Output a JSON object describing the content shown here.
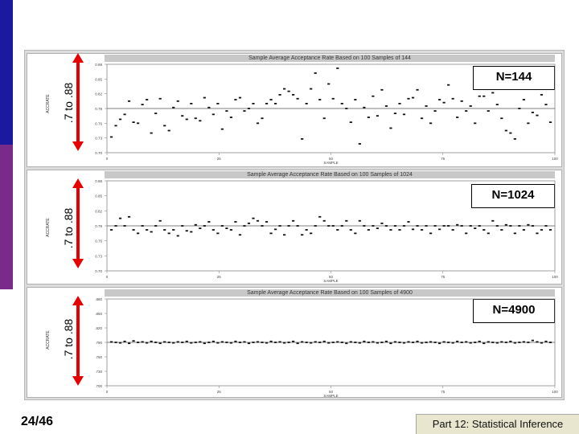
{
  "slide": {
    "number": "24/46",
    "footer": "Part 12: Statistical Inference",
    "accent_color": "#1a1aa0",
    "accent2_color": "#7a2a8a"
  },
  "chart_data": [
    {
      "type": "scatter",
      "title": "Sample Average Acceptance Rate Based on 100 Samples of 144",
      "n_label": "N=144",
      "range_label": ".7 to .88",
      "ylabel": "ACCRATE",
      "xlabel": "SAMPLE",
      "xlim": [
        0,
        100
      ],
      "ylim": [
        0.7,
        0.88
      ],
      "y_ticks": [
        "0.88",
        "0.85",
        "0.82",
        "0.79",
        "0.76",
        "0.73",
        "0.70"
      ],
      "x_ticks": [
        "0",
        "25",
        "50",
        "75",
        "100"
      ],
      "reference_line": 0.79,
      "y": [
        0.732,
        0.755,
        0.768,
        0.778,
        0.805,
        0.762,
        0.76,
        0.798,
        0.808,
        0.74,
        0.78,
        0.81,
        0.755,
        0.745,
        0.792,
        0.805,
        0.775,
        0.768,
        0.8,
        0.77,
        0.765,
        0.812,
        0.792,
        0.778,
        0.8,
        0.748,
        0.785,
        0.772,
        0.808,
        0.812,
        0.785,
        0.79,
        0.8,
        0.76,
        0.77,
        0.8,
        0.808,
        0.8,
        0.818,
        0.83,
        0.825,
        0.818,
        0.81,
        0.728,
        0.8,
        0.83,
        0.862,
        0.808,
        0.77,
        0.84,
        0.81,
        0.872,
        0.8,
        0.79,
        0.762,
        0.808,
        0.718,
        0.792,
        0.772,
        0.815,
        0.775,
        0.828,
        0.795,
        0.75,
        0.78,
        0.8,
        0.778,
        0.81,
        0.812,
        0.828,
        0.77,
        0.795,
        0.76,
        0.785,
        0.808,
        0.802,
        0.838,
        0.81,
        0.772,
        0.805,
        0.785,
        0.795,
        0.76,
        0.815,
        0.815,
        0.785,
        0.822,
        0.798,
        0.77,
        0.745,
        0.74,
        0.728,
        0.79,
        0.808,
        0.76,
        0.782,
        0.776,
        0.818,
        0.798,
        0.762
      ]
    },
    {
      "type": "scatter",
      "title": "Sample Average Acceptance Rate Based on 100 Samples of 1024",
      "n_label": "N=1024",
      "range_label": ".7 to .88",
      "ylabel": "ACCRATE",
      "xlabel": "SAMPLE",
      "xlim": [
        0,
        100
      ],
      "ylim": [
        0.7,
        0.88
      ],
      "y_ticks": [
        "0.88",
        "0.85",
        "0.82",
        "0.79",
        "0.76",
        "0.73",
        "0.70"
      ],
      "x_ticks": [
        "0",
        "25",
        "50",
        "75",
        "100"
      ],
      "reference_line": 0.79,
      "y": [
        0.782,
        0.79,
        0.805,
        0.79,
        0.808,
        0.782,
        0.775,
        0.79,
        0.782,
        0.778,
        0.79,
        0.8,
        0.782,
        0.775,
        0.782,
        0.77,
        0.79,
        0.78,
        0.778,
        0.792,
        0.785,
        0.79,
        0.798,
        0.782,
        0.775,
        0.79,
        0.785,
        0.782,
        0.798,
        0.772,
        0.79,
        0.795,
        0.805,
        0.8,
        0.79,
        0.798,
        0.775,
        0.783,
        0.79,
        0.772,
        0.79,
        0.8,
        0.79,
        0.772,
        0.782,
        0.775,
        0.79,
        0.808,
        0.8,
        0.79,
        0.79,
        0.782,
        0.79,
        0.8,
        0.782,
        0.775,
        0.8,
        0.79,
        0.782,
        0.79,
        0.785,
        0.795,
        0.79,
        0.782,
        0.79,
        0.782,
        0.79,
        0.798,
        0.783,
        0.79,
        0.782,
        0.79,
        0.775,
        0.79,
        0.783,
        0.79,
        0.79,
        0.782,
        0.792,
        0.79,
        0.775,
        0.79,
        0.785,
        0.79,
        0.782,
        0.775,
        0.8,
        0.79,
        0.782,
        0.792,
        0.79,
        0.775,
        0.79,
        0.782,
        0.792,
        0.79,
        0.775,
        0.782,
        0.79,
        0.782
      ]
    },
    {
      "type": "scatter",
      "title": "Sample Average Acceptance Rate Based on 100 Samples of 4900",
      "n_label": "N=4900",
      "range_label": ".7 to .88",
      "ylabel": "ACCRATE",
      "xlabel": "SAMPLE",
      "xlim": [
        0,
        100
      ],
      "ylim": [
        0.7,
        0.88
      ],
      "y_ticks": [
        ".880",
        ".850",
        ".820",
        ".790",
        ".760",
        ".730",
        ".700"
      ],
      "x_ticks": [
        "0",
        "25",
        "50",
        "75",
        "100"
      ],
      "reference_line": 0.79,
      "y": [
        0.791,
        0.79,
        0.789,
        0.792,
        0.788,
        0.793,
        0.79,
        0.791,
        0.789,
        0.792,
        0.79,
        0.788,
        0.791,
        0.79,
        0.789,
        0.791,
        0.79,
        0.792,
        0.789,
        0.79,
        0.791,
        0.788,
        0.79,
        0.792,
        0.789,
        0.791,
        0.79,
        0.789,
        0.792,
        0.79,
        0.791,
        0.788,
        0.79,
        0.791,
        0.79,
        0.789,
        0.792,
        0.79,
        0.791,
        0.789,
        0.79,
        0.792,
        0.788,
        0.791,
        0.79,
        0.789,
        0.791,
        0.79,
        0.792,
        0.789,
        0.79,
        0.791,
        0.79,
        0.788,
        0.791,
        0.79,
        0.789,
        0.792,
        0.79,
        0.791,
        0.789,
        0.79,
        0.792,
        0.788,
        0.791,
        0.79,
        0.789,
        0.791,
        0.79,
        0.792,
        0.789,
        0.79,
        0.791,
        0.79,
        0.788,
        0.791,
        0.79,
        0.789,
        0.792,
        0.79,
        0.791,
        0.789,
        0.79,
        0.792,
        0.788,
        0.791,
        0.79,
        0.789,
        0.791,
        0.79,
        0.792,
        0.789,
        0.79,
        0.791,
        0.79,
        0.794,
        0.791,
        0.789,
        0.792,
        0.79
      ]
    }
  ]
}
